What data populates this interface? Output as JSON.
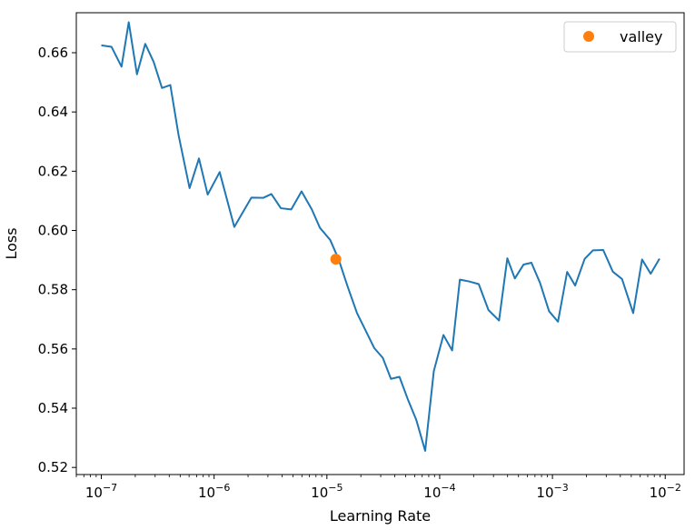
{
  "chart_data": {
    "type": "line",
    "title": "",
    "xlabel": "Learning Rate",
    "ylabel": "Loss",
    "x_scale": "log",
    "xlim": [
      6e-08,
      0.0147
    ],
    "ylim": [
      0.5176,
      0.6735
    ],
    "x_tick_labels": [
      {
        "base": "10",
        "exp": "−7",
        "value": 1e-07
      },
      {
        "base": "10",
        "exp": "−6",
        "value": 1e-06
      },
      {
        "base": "10",
        "exp": "−5",
        "value": 1e-05
      },
      {
        "base": "10",
        "exp": "−4",
        "value": 0.0001
      },
      {
        "base": "10",
        "exp": "−3",
        "value": 0.001
      },
      {
        "base": "10",
        "exp": "−2",
        "value": 0.01
      }
    ],
    "y_tick_labels": [
      "0.52",
      "0.54",
      "0.56",
      "0.58",
      "0.60",
      "0.62",
      "0.64",
      "0.66"
    ],
    "y_tick_values": [
      0.52,
      0.54,
      0.56,
      0.58,
      0.6,
      0.62,
      0.64,
      0.66
    ],
    "grid": false,
    "legend_placement": "top-right",
    "series": [
      {
        "color": "#1f77b4",
        "style": "line",
        "x": [
          1e-07,
          1.23e-07,
          1.51e-07,
          1.75e-07,
          2.07e-07,
          2.45e-07,
          2.91e-07,
          3.45e-07,
          4.09e-07,
          4.85e-07,
          6.06e-07,
          7.34e-07,
          8.77e-07,
          1.12e-06,
          1.51e-06,
          2.14e-06,
          2.72e-06,
          3.22e-06,
          3.91e-06,
          4.83e-06,
          5.96e-06,
          7.35e-06,
          8.67e-06,
          1.07e-05,
          1.27e-05,
          1.52e-05,
          1.85e-05,
          2.18e-05,
          2.63e-05,
          3.13e-05,
          3.7e-05,
          4.4e-05,
          5.27e-05,
          6.21e-05,
          7.44e-05,
          8.87e-05,
          0.000108,
          0.000129,
          0.000151,
          0.000182,
          0.000222,
          0.000271,
          0.000336,
          0.000398,
          0.000464,
          0.000555,
          0.000651,
          0.000776,
          0.000934,
          0.00112,
          0.00135,
          0.00159,
          0.00193,
          0.00229,
          0.00282,
          0.00343,
          0.00414,
          0.0052,
          0.00623,
          0.00743,
          0.0089
        ],
        "y": [
          0.6625,
          0.662,
          0.6553,
          0.6703,
          0.6527,
          0.663,
          0.6569,
          0.6481,
          0.6491,
          0.632,
          0.6143,
          0.6243,
          0.6121,
          0.6197,
          0.6012,
          0.6111,
          0.611,
          0.6123,
          0.6075,
          0.6071,
          0.6132,
          0.6071,
          0.6009,
          0.5968,
          0.5903,
          0.5813,
          0.5721,
          0.5666,
          0.5603,
          0.557,
          0.5499,
          0.5506,
          0.5426,
          0.536,
          0.5256,
          0.5525,
          0.5647,
          0.5595,
          0.5834,
          0.5828,
          0.5819,
          0.5731,
          0.5696,
          0.5906,
          0.5838,
          0.5885,
          0.5891,
          0.5823,
          0.5727,
          0.5692,
          0.586,
          0.5814,
          0.5904,
          0.5933,
          0.5934,
          0.5861,
          0.5836,
          0.5721,
          0.5902,
          0.5854,
          0.5905
        ]
      },
      {
        "name": "valley",
        "color": "#ff7f0e",
        "style": "marker",
        "x": [
          1.2e-05
        ],
        "y": [
          0.5903
        ]
      }
    ]
  }
}
